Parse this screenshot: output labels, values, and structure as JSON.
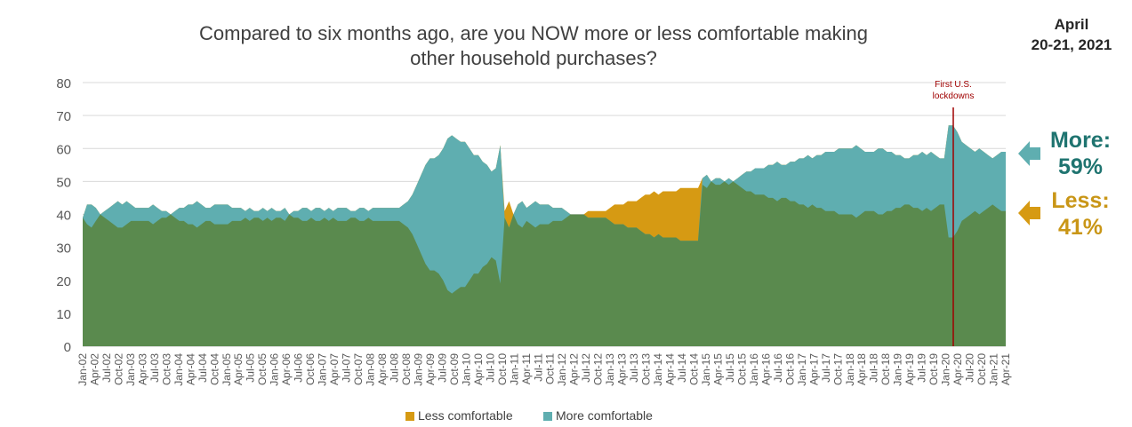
{
  "title_line1": "Compared to six months ago, are you NOW more or less comfortable making",
  "title_line2": "other household purchases?",
  "date_line1": "April",
  "date_line2": "20-21, 2021",
  "annotation_line1": "First U.S.",
  "annotation_line2": "lockdowns",
  "callouts": {
    "more_label": "More:",
    "more_value": "59%",
    "less_label": "Less:",
    "less_value": "41%"
  },
  "colors": {
    "more": "#5faeb0",
    "less": "#d69a13",
    "less_area": "#5a8a4e",
    "more_text": "#1f7470",
    "less_text": "#c99617",
    "lockdown_line": "#a00000"
  },
  "chart_data": {
    "type": "area",
    "ylim": [
      0,
      80
    ],
    "yticks": [
      0,
      10,
      20,
      30,
      40,
      50,
      60,
      70,
      80
    ],
    "grid": true,
    "legend_position": "bottom",
    "x_tick_labels": [
      "Jan-02",
      "Apr-02",
      "Jul-02",
      "Oct-02",
      "Jan-03",
      "Apr-03",
      "Jul-03",
      "Oct-03",
      "Jan-04",
      "Apr-04",
      "Jul-04",
      "Oct-04",
      "Jan-05",
      "Apr-05",
      "Jul-05",
      "Oct-05",
      "Jan-06",
      "Apr-06",
      "Jul-06",
      "Oct-06",
      "Jan-07",
      "Apr-07",
      "Jul-07",
      "Oct-07",
      "Jan-08",
      "Apr-08",
      "Jul-08",
      "Oct-08",
      "Jan-09",
      "Apr-09",
      "Jul-09",
      "Oct-09",
      "Jan-10",
      "Apr-10",
      "Jul-10",
      "Oct-10",
      "Jan-11",
      "Apr-11",
      "Jul-11",
      "Oct-11",
      "Jan-12",
      "Apr-12",
      "Jul-12",
      "Oct-12",
      "Jan-13",
      "Apr-13",
      "Jul-13",
      "Oct-13",
      "Jan-14",
      "Apr-14",
      "Jul-14",
      "Oct-14",
      "Jan-15",
      "Apr-15",
      "Jul-15",
      "Oct-15",
      "Jan-16",
      "Apr-16",
      "Jul-16",
      "Oct-16",
      "Jan-17",
      "Apr-17",
      "Jul-17",
      "Oct-17",
      "Jan-18",
      "Apr-18",
      "Jul-18",
      "Oct-18",
      "Jan-19",
      "Apr-19",
      "Jul-19",
      "Oct-19",
      "Jan-20",
      "Apr-20",
      "Jul-20",
      "Oct-20",
      "Jan-21",
      "Apr-21"
    ],
    "event_x": "Mar-20",
    "series": [
      {
        "name": "Less comfortable",
        "values": [
          39,
          37,
          36,
          38,
          40,
          39,
          38,
          37,
          36,
          36,
          37,
          38,
          38,
          38,
          38,
          38,
          37,
          38,
          39,
          39,
          40,
          39,
          38,
          38,
          37,
          37,
          36,
          37,
          38,
          38,
          37,
          37,
          37,
          37,
          38,
          38,
          38,
          39,
          38,
          39,
          39,
          38,
          39,
          38,
          39,
          39,
          38,
          40,
          39,
          39,
          38,
          38,
          39,
          38,
          38,
          39,
          38,
          39,
          38,
          38,
          38,
          39,
          39,
          38,
          38,
          39,
          38,
          38,
          38,
          38,
          38,
          38,
          38,
          37,
          36,
          34,
          31,
          28,
          25,
          23,
          23,
          22,
          20,
          17,
          16,
          17,
          18,
          18,
          20,
          22,
          22,
          24,
          25,
          27,
          26,
          19,
          41,
          44,
          40,
          37,
          36,
          38,
          37,
          36,
          37,
          37,
          37,
          38,
          38,
          38,
          39,
          40,
          40,
          40,
          40,
          41,
          41,
          41,
          41,
          41,
          42,
          43,
          43,
          43,
          44,
          44,
          44,
          45,
          46,
          46,
          47,
          46,
          47,
          47,
          47,
          47,
          48,
          48,
          48,
          48,
          48,
          49,
          48,
          50,
          49,
          49,
          50,
          49,
          50,
          49,
          48,
          47,
          47,
          46,
          46,
          46,
          45,
          45,
          44,
          45,
          45,
          44,
          44,
          43,
          43,
          42,
          43,
          42,
          42,
          41,
          41,
          41,
          40,
          40,
          40,
          40,
          39,
          40,
          41,
          41,
          41,
          40,
          40,
          41,
          41,
          42,
          42,
          43,
          43,
          42,
          42,
          41,
          42,
          41,
          42,
          43,
          43,
          33,
          33,
          35,
          38,
          39,
          40,
          41,
          40,
          41,
          42,
          43,
          42,
          41,
          41
        ]
      },
      {
        "name": "More comfortable",
        "values": [
          39,
          43,
          43,
          42,
          40,
          41,
          42,
          43,
          44,
          43,
          44,
          43,
          42,
          42,
          42,
          42,
          43,
          42,
          41,
          41,
          40,
          41,
          42,
          42,
          43,
          43,
          44,
          43,
          42,
          42,
          43,
          43,
          43,
          43,
          42,
          42,
          42,
          41,
          42,
          41,
          41,
          42,
          41,
          42,
          41,
          41,
          42,
          40,
          41,
          41,
          42,
          42,
          41,
          42,
          42,
          41,
          42,
          41,
          42,
          42,
          42,
          41,
          41,
          42,
          42,
          41,
          42,
          42,
          42,
          42,
          42,
          42,
          42,
          43,
          44,
          46,
          49,
          52,
          55,
          57,
          57,
          58,
          60,
          63,
          64,
          63,
          62,
          62,
          60,
          58,
          58,
          56,
          55,
          53,
          54,
          61,
          39,
          36,
          40,
          43,
          44,
          42,
          43,
          44,
          43,
          43,
          43,
          42,
          42,
          42,
          41,
          40,
          40,
          40,
          40,
          39,
          39,
          39,
          39,
          39,
          38,
          37,
          37,
          37,
          36,
          36,
          36,
          35,
          34,
          34,
          33,
          34,
          33,
          33,
          33,
          33,
          32,
          32,
          32,
          32,
          32,
          51,
          52,
          50,
          51,
          51,
          50,
          51,
          50,
          51,
          52,
          53,
          53,
          54,
          54,
          54,
          55,
          55,
          56,
          55,
          55,
          56,
          56,
          57,
          57,
          58,
          57,
          58,
          58,
          59,
          59,
          59,
          60,
          60,
          60,
          60,
          61,
          60,
          59,
          59,
          59,
          60,
          60,
          59,
          59,
          58,
          58,
          57,
          57,
          58,
          58,
          59,
          58,
          59,
          58,
          57,
          57,
          67,
          67,
          65,
          62,
          61,
          60,
          59,
          60,
          59,
          58,
          57,
          58,
          59,
          59
        ]
      }
    ]
  }
}
